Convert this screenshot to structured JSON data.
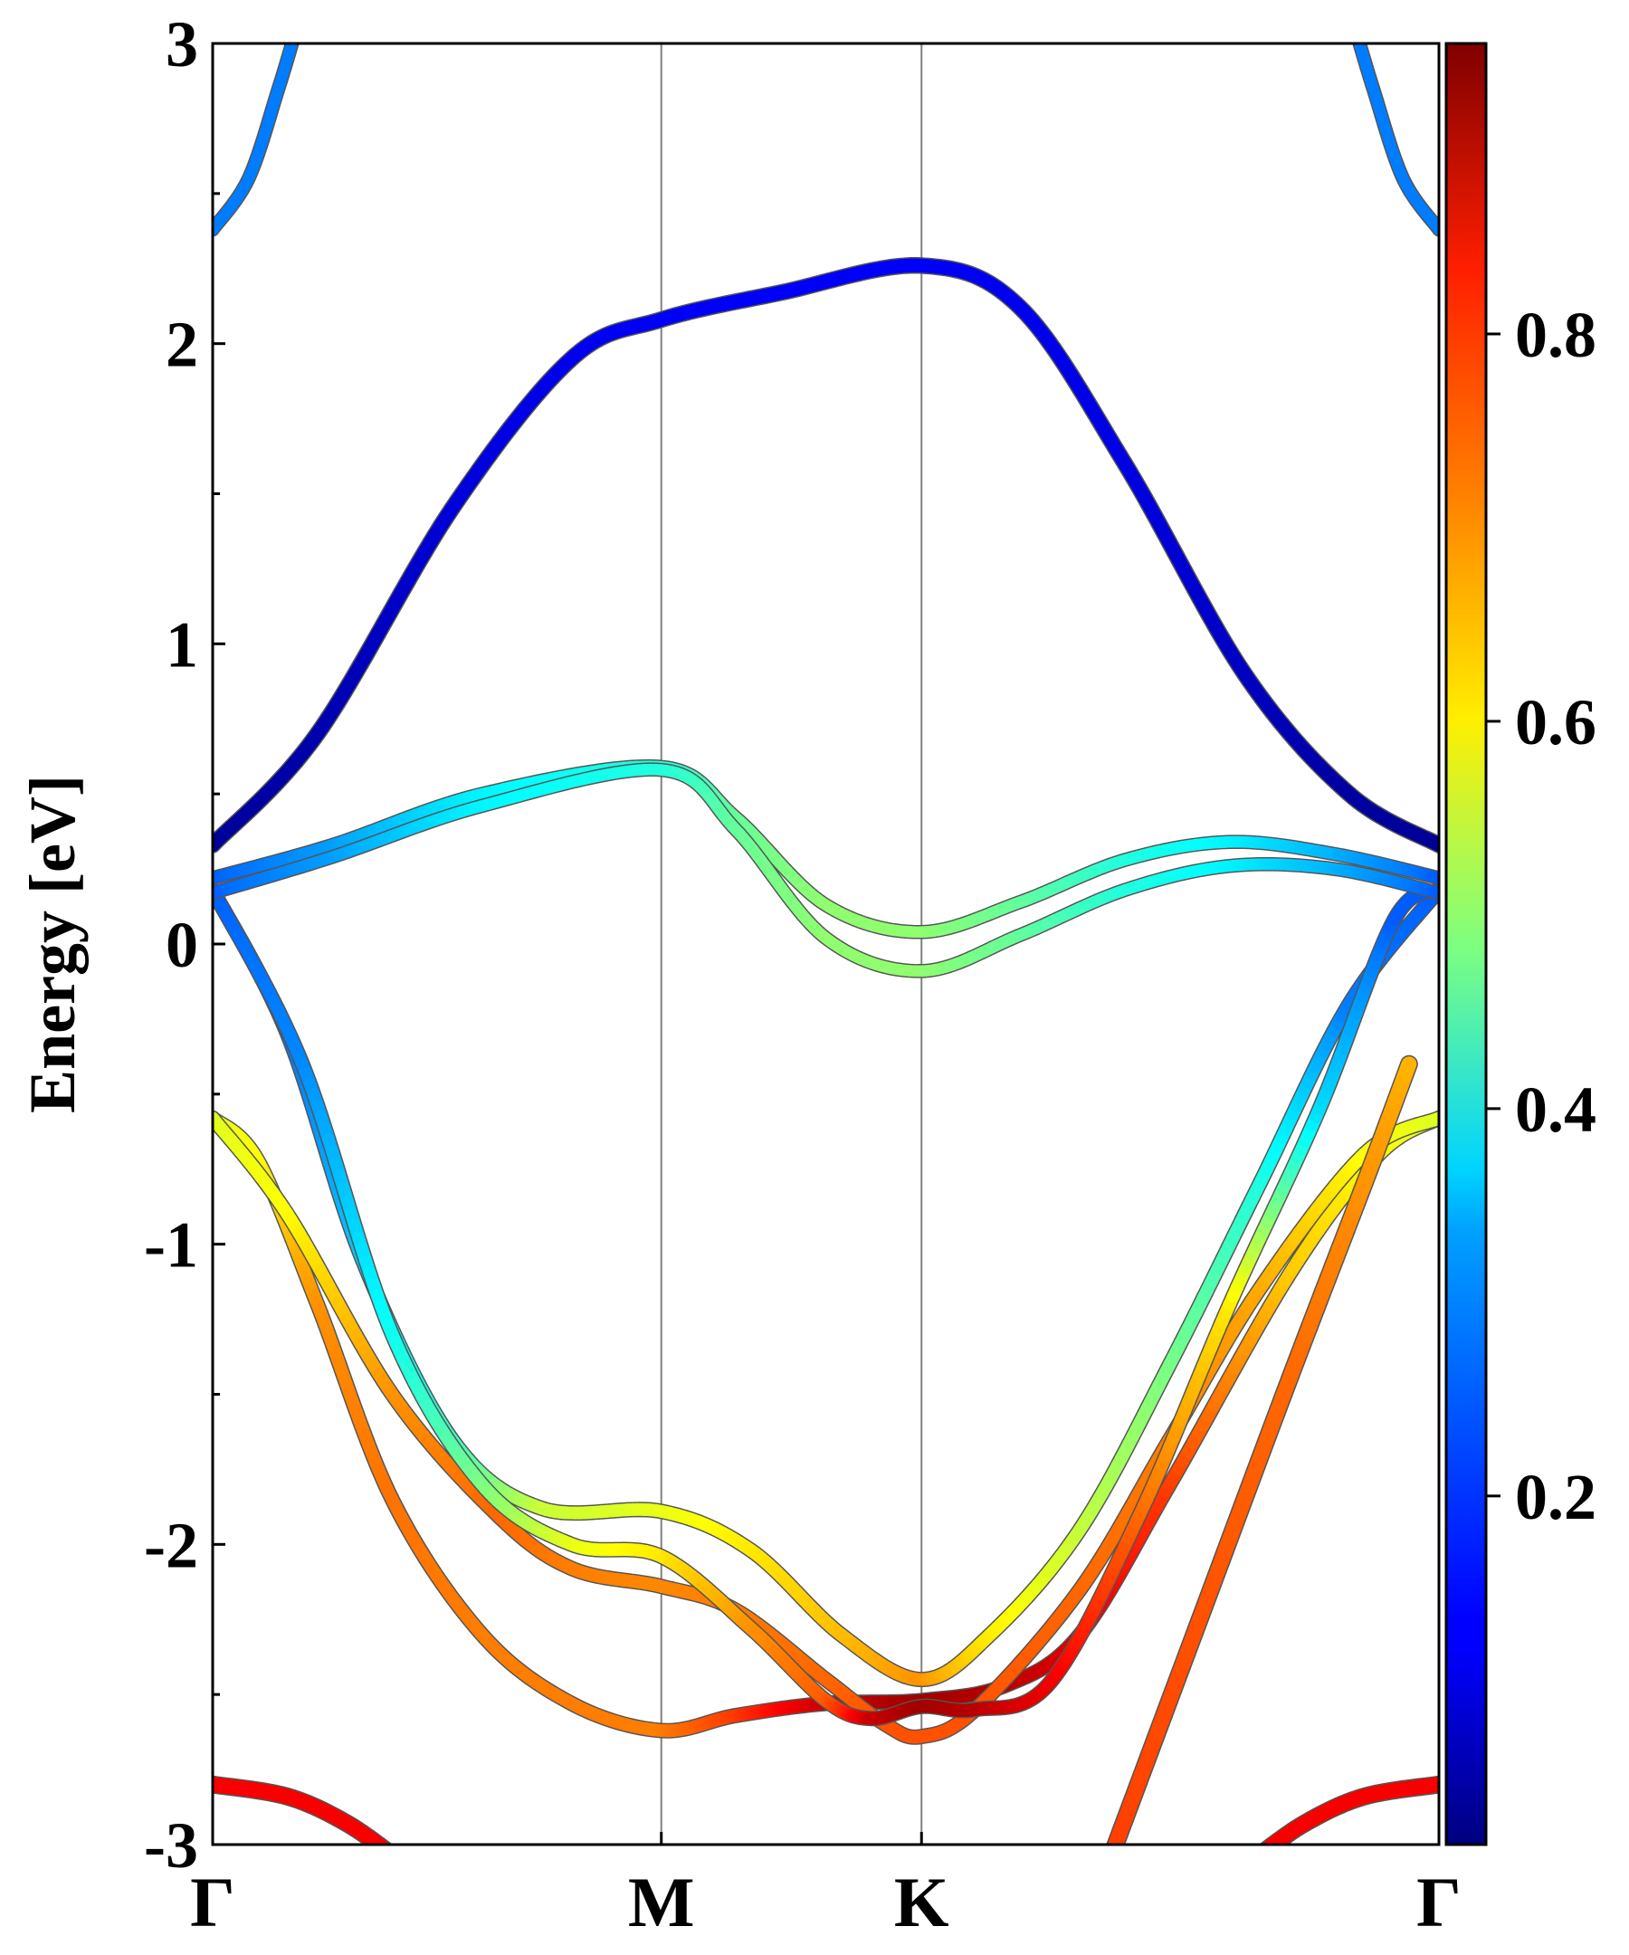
{
  "chart_data": {
    "type": "line",
    "title": "",
    "xlabel": "",
    "ylabel": "Energy [eV]",
    "ylim": [
      -3,
      3
    ],
    "xlim": [
      0,
      4.1
    ],
    "grid": false,
    "y_ticks": [
      {
        "value": 3,
        "label": "3"
      },
      {
        "value": 2,
        "label": "2"
      },
      {
        "value": 1,
        "label": "1"
      },
      {
        "value": 0,
        "label": "0"
      },
      {
        "value": -1,
        "label": "-1"
      },
      {
        "value": -2,
        "label": "-2"
      },
      {
        "value": -3,
        "label": "-3"
      }
    ],
    "y_minor_step": 0.5,
    "k_points": [
      {
        "label": "Γ",
        "x": 0.0
      },
      {
        "label": "M",
        "x": 1.5
      },
      {
        "label": "K",
        "x": 2.37
      },
      {
        "label": "Γ",
        "x": 4.1
      }
    ],
    "colorbar": {
      "colormap": "jet",
      "range": [
        0.02,
        0.95
      ],
      "ticks": [
        {
          "value": 0.2,
          "label": "0.2"
        },
        {
          "value": 0.4,
          "label": "0.4"
        },
        {
          "value": 0.6,
          "label": "0.6"
        },
        {
          "value": 0.8,
          "label": "0.8"
        }
      ]
    },
    "series": [
      {
        "name": "band-1",
        "width": 1.2,
        "points": [
          [
            0,
            -2.8,
            0.84
          ],
          [
            0.25,
            -2.84,
            0.84
          ],
          [
            0.45,
            -2.93,
            0.84
          ],
          [
            0.62,
            -3.05,
            0.84
          ]
        ]
      },
      {
        "name": "band-2",
        "width": 1.2,
        "points": [
          [
            3.48,
            -3.05,
            0.84
          ],
          [
            3.65,
            -2.93,
            0.84
          ],
          [
            3.85,
            -2.84,
            0.84
          ],
          [
            4.1,
            -2.8,
            0.84
          ]
        ]
      },
      {
        "name": "band-3",
        "width": 1.0,
        "points": [
          [
            0,
            -0.58,
            0.57
          ],
          [
            0.15,
            -0.72,
            0.6
          ],
          [
            0.35,
            -1.2,
            0.7
          ],
          [
            0.6,
            -1.85,
            0.73
          ],
          [
            0.9,
            -2.3,
            0.72
          ],
          [
            1.2,
            -2.53,
            0.72
          ],
          [
            1.5,
            -2.62,
            0.72
          ],
          [
            1.75,
            -2.57,
            0.78
          ],
          [
            2.05,
            -2.53,
            0.88
          ],
          [
            2.37,
            -2.52,
            0.92
          ],
          [
            2.65,
            -2.47,
            0.9
          ],
          [
            2.9,
            -2.3,
            0.86
          ],
          [
            3.2,
            -1.8,
            0.78
          ],
          [
            3.6,
            -1.1,
            0.65
          ],
          [
            3.9,
            -0.7,
            0.6
          ],
          [
            4.1,
            -0.58,
            0.57
          ]
        ]
      },
      {
        "name": "band-4",
        "width": 1.0,
        "points": [
          [
            0,
            -0.58,
            0.57
          ],
          [
            0.25,
            -0.9,
            0.6
          ],
          [
            0.6,
            -1.5,
            0.7
          ],
          [
            0.95,
            -1.9,
            0.74
          ],
          [
            1.2,
            -2.08,
            0.72
          ],
          [
            1.5,
            -2.14,
            0.71
          ],
          [
            1.75,
            -2.22,
            0.72
          ],
          [
            2.05,
            -2.45,
            0.74
          ],
          [
            2.25,
            -2.6,
            0.76
          ],
          [
            2.37,
            -2.64,
            0.76
          ],
          [
            2.55,
            -2.55,
            0.76
          ],
          [
            2.9,
            -2.15,
            0.74
          ],
          [
            3.2,
            -1.65,
            0.72
          ],
          [
            3.5,
            -1.15,
            0.68
          ],
          [
            3.85,
            -0.7,
            0.6
          ],
          [
            4.1,
            -0.58,
            0.57
          ]
        ]
      },
      {
        "name": "band-5",
        "width": 1.0,
        "points": [
          [
            0,
            0.18,
            0.22
          ],
          [
            0.25,
            -0.3,
            0.24
          ],
          [
            0.5,
            -1.05,
            0.32
          ],
          [
            0.8,
            -1.65,
            0.42
          ],
          [
            1.1,
            -1.88,
            0.55
          ],
          [
            1.5,
            -1.89,
            0.58
          ],
          [
            1.8,
            -2.02,
            0.62
          ],
          [
            2.1,
            -2.3,
            0.66
          ],
          [
            2.37,
            -2.45,
            0.7
          ],
          [
            2.6,
            -2.3,
            0.62
          ],
          [
            2.9,
            -1.95,
            0.55
          ],
          [
            3.2,
            -1.4,
            0.48
          ],
          [
            3.5,
            -0.8,
            0.4
          ],
          [
            3.8,
            -0.2,
            0.25
          ],
          [
            4.1,
            0.18,
            0.22
          ]
        ]
      },
      {
        "name": "band-6",
        "width": 1.0,
        "points": [
          [
            0,
            0.18,
            0.22
          ],
          [
            0.3,
            -0.4,
            0.26
          ],
          [
            0.6,
            -1.3,
            0.38
          ],
          [
            0.9,
            -1.8,
            0.48
          ],
          [
            1.2,
            -2.0,
            0.58
          ],
          [
            1.5,
            -2.04,
            0.62
          ],
          [
            1.8,
            -2.28,
            0.7
          ],
          [
            2.05,
            -2.52,
            0.75
          ],
          [
            2.2,
            -2.58,
            0.88
          ],
          [
            2.37,
            -2.54,
            0.92
          ],
          [
            2.55,
            -2.55,
            0.9
          ],
          [
            2.8,
            -2.46,
            0.85
          ],
          [
            3.1,
            -1.9,
            0.74
          ],
          [
            3.4,
            -1.2,
            0.62
          ],
          [
            3.7,
            -0.55,
            0.34
          ],
          [
            3.95,
            0.08,
            0.22
          ],
          [
            4.1,
            0.18,
            0.22
          ]
        ]
      },
      {
        "name": "band-7",
        "width": 1.2,
        "points": [
          [
            3.0,
            -3.05,
            0.78
          ],
          [
            3.3,
            -2.25,
            0.76
          ],
          [
            3.6,
            -1.45,
            0.74
          ],
          [
            3.85,
            -0.8,
            0.7
          ],
          [
            4.0,
            -0.4,
            0.67
          ]
        ]
      },
      {
        "name": "band-8",
        "width": 0.9,
        "points": [
          [
            0,
            0.22,
            0.22
          ],
          [
            0.4,
            0.33,
            0.28
          ],
          [
            0.9,
            0.5,
            0.36
          ],
          [
            1.5,
            0.59,
            0.4
          ],
          [
            1.75,
            0.42,
            0.46
          ],
          [
            2.05,
            0.13,
            0.5
          ],
          [
            2.37,
            0.04,
            0.5
          ],
          [
            2.7,
            0.14,
            0.46
          ],
          [
            3.05,
            0.28,
            0.4
          ],
          [
            3.4,
            0.34,
            0.36
          ],
          [
            3.75,
            0.3,
            0.3
          ],
          [
            4.1,
            0.22,
            0.22
          ]
        ]
      },
      {
        "name": "band-9",
        "width": 0.9,
        "points": [
          [
            0,
            0.17,
            0.22
          ],
          [
            0.4,
            0.29,
            0.28
          ],
          [
            0.9,
            0.46,
            0.36
          ],
          [
            1.5,
            0.58,
            0.4
          ],
          [
            1.75,
            0.38,
            0.46
          ],
          [
            2.05,
            0.02,
            0.5
          ],
          [
            2.37,
            -0.09,
            0.5
          ],
          [
            2.7,
            0.03,
            0.46
          ],
          [
            3.05,
            0.18,
            0.4
          ],
          [
            3.4,
            0.26,
            0.36
          ],
          [
            3.75,
            0.25,
            0.3
          ],
          [
            4.1,
            0.17,
            0.22
          ]
        ]
      },
      {
        "name": "band-10",
        "width": 1.1,
        "points": [
          [
            0,
            0.33,
            0.04
          ],
          [
            0.35,
            0.7,
            0.06
          ],
          [
            0.8,
            1.45,
            0.1
          ],
          [
            1.2,
            1.95,
            0.12
          ],
          [
            1.5,
            2.08,
            0.13
          ],
          [
            1.9,
            2.17,
            0.13
          ],
          [
            2.37,
            2.26,
            0.13
          ],
          [
            2.7,
            2.12,
            0.12
          ],
          [
            3.05,
            1.6,
            0.11
          ],
          [
            3.45,
            0.9,
            0.08
          ],
          [
            3.8,
            0.5,
            0.05
          ],
          [
            4.1,
            0.33,
            0.04
          ]
        ]
      },
      {
        "name": "band-11",
        "width": 0.9,
        "points": [
          [
            0,
            2.38,
            0.25
          ],
          [
            0.12,
            2.55,
            0.25
          ],
          [
            0.22,
            2.85,
            0.25
          ],
          [
            0.28,
            3.05,
            0.25
          ]
        ]
      },
      {
        "name": "band-12",
        "width": 0.9,
        "points": [
          [
            3.82,
            3.05,
            0.25
          ],
          [
            3.88,
            2.85,
            0.25
          ],
          [
            3.98,
            2.55,
            0.25
          ],
          [
            4.1,
            2.38,
            0.25
          ]
        ]
      }
    ]
  }
}
